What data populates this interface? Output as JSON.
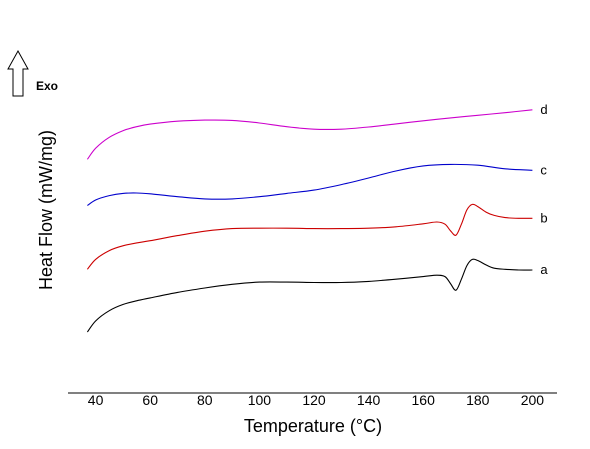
{
  "chart_data": {
    "type": "line",
    "xlabel": "Temperature (°C)",
    "ylabel": "Heat Flow (mW/mg)",
    "exo_label": "Exo",
    "exo_arrow_icon": "up-arrow-icon",
    "xlim": [
      32,
      210
    ],
    "xticks": [
      40,
      60,
      80,
      100,
      120,
      140,
      160,
      180,
      200
    ],
    "grid": false,
    "series": [
      {
        "name": "a",
        "color": "#000000",
        "x": [
          37,
          40,
          45,
          50,
          55,
          60,
          70,
          80,
          90,
          100,
          110,
          120,
          130,
          140,
          150,
          160,
          165,
          168,
          170,
          172,
          174,
          176,
          178,
          180,
          183,
          186,
          190,
          195,
          200
        ],
        "y": [
          3.0,
          3.5,
          3.97,
          4.25,
          4.42,
          4.55,
          4.8,
          5.0,
          5.17,
          5.27,
          5.27,
          5.25,
          5.25,
          5.3,
          5.4,
          5.52,
          5.58,
          5.52,
          5.2,
          4.9,
          5.4,
          6.02,
          6.3,
          6.25,
          6.05,
          5.9,
          5.85,
          5.82,
          5.82
        ]
      },
      {
        "name": "b",
        "color": "#cc0000",
        "x": [
          37,
          40,
          45,
          50,
          55,
          60,
          70,
          80,
          90,
          100,
          110,
          120,
          130,
          140,
          150,
          160,
          165,
          168,
          170,
          172,
          174,
          176,
          178,
          180,
          183,
          186,
          190,
          195,
          200
        ],
        "y": [
          5.85,
          6.3,
          6.7,
          6.92,
          7.05,
          7.15,
          7.38,
          7.58,
          7.7,
          7.72,
          7.72,
          7.7,
          7.7,
          7.72,
          7.78,
          7.92,
          8.0,
          7.9,
          7.6,
          7.4,
          7.9,
          8.55,
          8.8,
          8.7,
          8.45,
          8.3,
          8.2,
          8.17,
          8.17
        ]
      },
      {
        "name": "c",
        "color": "#0000cc",
        "x": [
          37,
          40,
          45,
          50,
          55,
          60,
          70,
          80,
          90,
          100,
          110,
          120,
          130,
          140,
          150,
          160,
          170,
          180,
          190,
          200
        ],
        "y": [
          8.75,
          9.0,
          9.2,
          9.3,
          9.32,
          9.28,
          9.15,
          9.05,
          9.05,
          9.15,
          9.3,
          9.45,
          9.7,
          10.0,
          10.32,
          10.55,
          10.62,
          10.58,
          10.42,
          10.35
        ]
      },
      {
        "name": "d",
        "color": "#cc00cc",
        "x": [
          37,
          40,
          45,
          50,
          55,
          60,
          70,
          80,
          90,
          100,
          110,
          120,
          130,
          140,
          150,
          160,
          170,
          180,
          190,
          200
        ],
        "y": [
          10.85,
          11.35,
          11.85,
          12.15,
          12.33,
          12.45,
          12.58,
          12.63,
          12.62,
          12.5,
          12.33,
          12.22,
          12.22,
          12.32,
          12.46,
          12.6,
          12.73,
          12.85,
          12.97,
          13.1
        ]
      }
    ]
  }
}
